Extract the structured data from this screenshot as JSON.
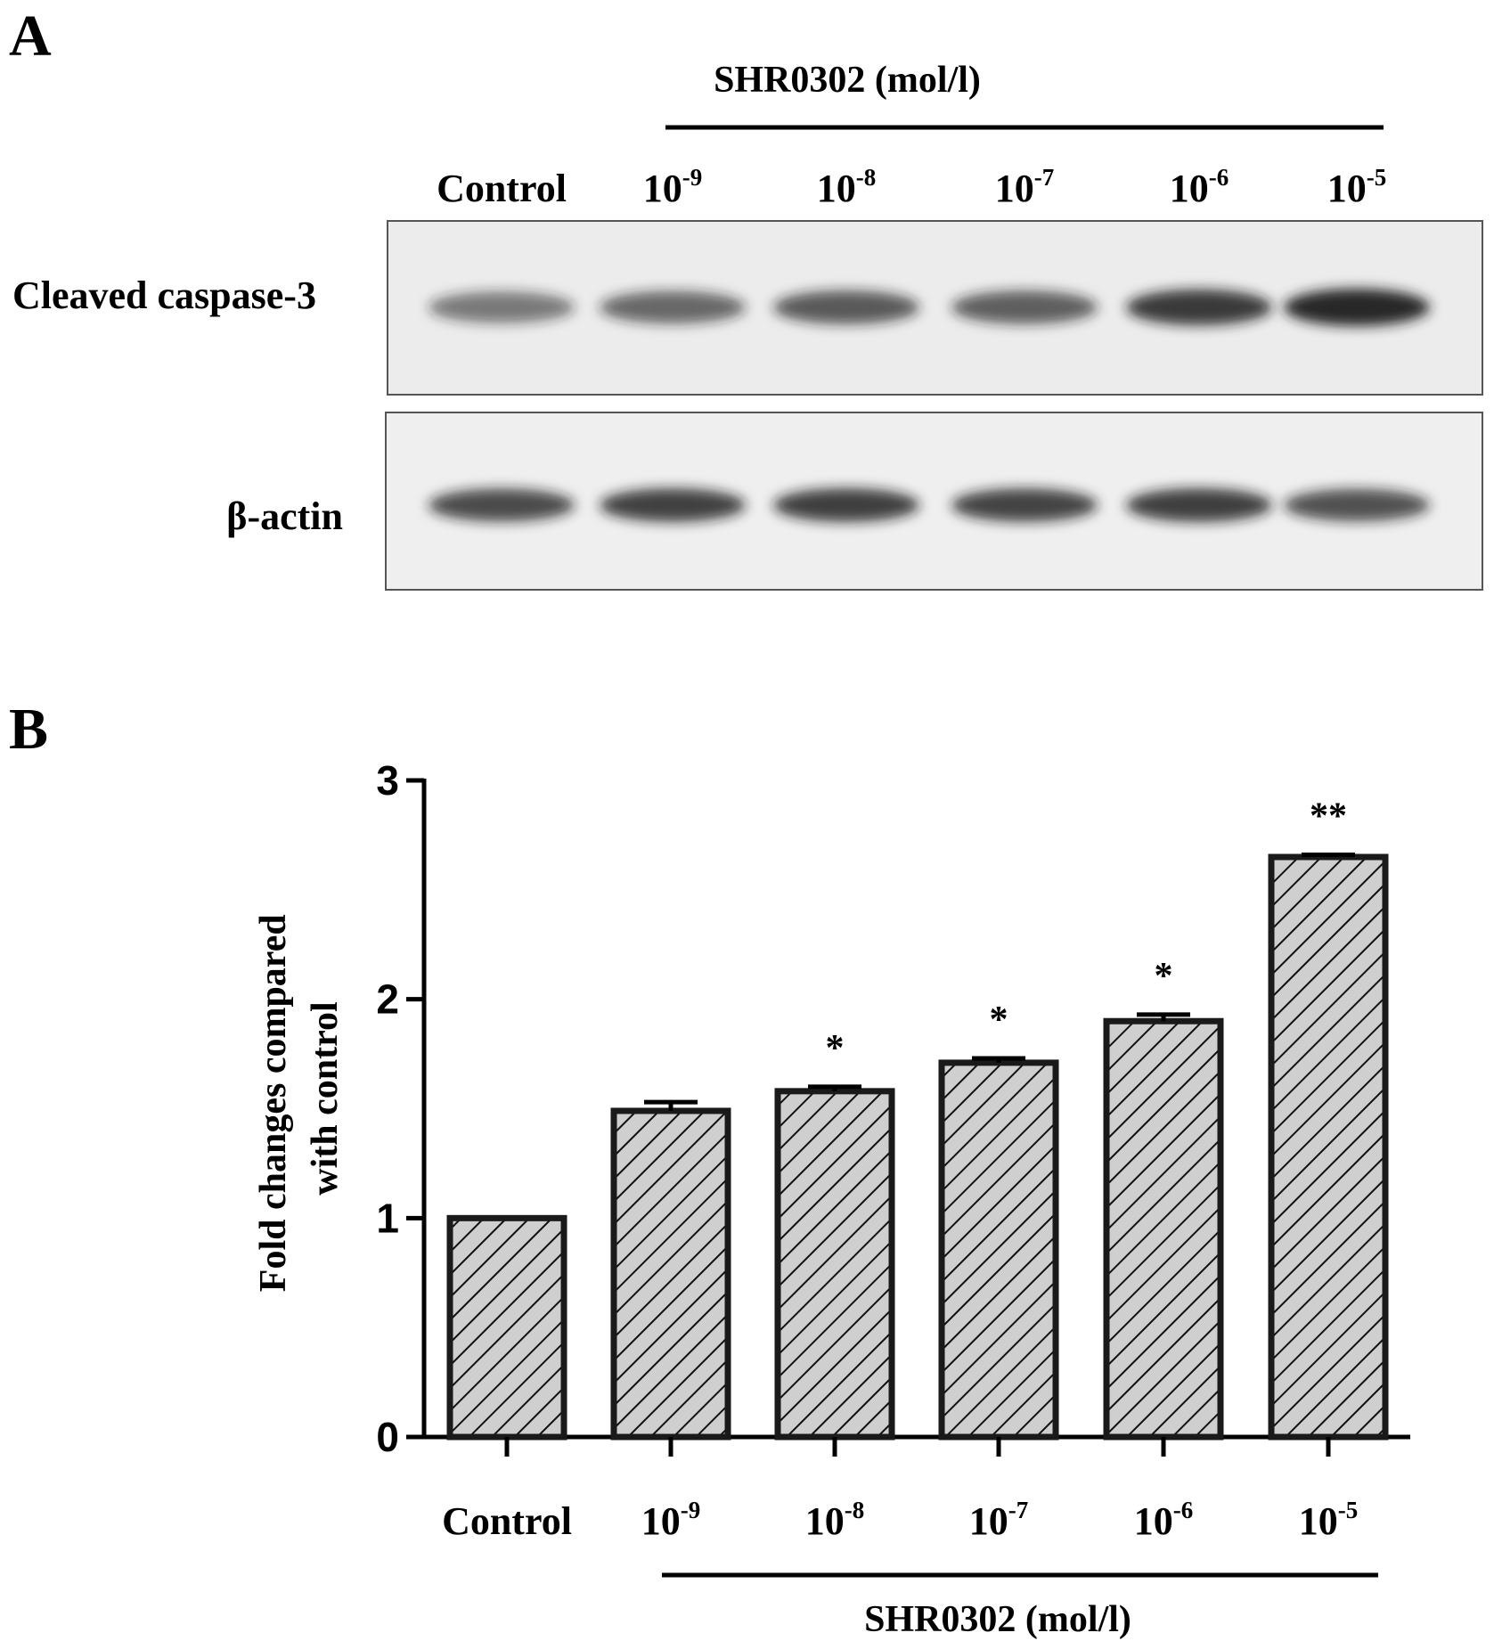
{
  "panel_a": {
    "letter": "A",
    "group_label": "SHR0302 (mol/l)",
    "lanes": [
      {
        "base": "Control",
        "exp": ""
      },
      {
        "base": "10",
        "exp": "-9"
      },
      {
        "base": "10",
        "exp": "-8"
      },
      {
        "base": "10",
        "exp": "-7"
      },
      {
        "base": "10",
        "exp": "-6"
      },
      {
        "base": "10",
        "exp": "-5"
      }
    ],
    "blot_rows": [
      {
        "label": "Cleaved caspase-3",
        "band_intensity": [
          0.45,
          0.55,
          0.65,
          0.62,
          0.85,
          1.0
        ]
      },
      {
        "label": "β-actin",
        "band_intensity": [
          0.75,
          0.8,
          0.82,
          0.78,
          0.82,
          0.7
        ]
      }
    ],
    "colors": {
      "band": "#1c1c1c",
      "membrane": "#ececec"
    }
  },
  "panel_b": {
    "letter": "B",
    "group_label": "SHR0302 (mol/l)",
    "ylabel_lines": [
      "Fold changes compared",
      "with control"
    ]
  },
  "chart_data": {
    "type": "bar",
    "categories": [
      {
        "base": "Control",
        "exp": ""
      },
      {
        "base": "10",
        "exp": "-9"
      },
      {
        "base": "10",
        "exp": "-8"
      },
      {
        "base": "10",
        "exp": "-7"
      },
      {
        "base": "10",
        "exp": "-6"
      },
      {
        "base": "10",
        "exp": "-5"
      }
    ],
    "values": [
      1.0,
      1.49,
      1.58,
      1.71,
      1.9,
      2.65
    ],
    "errors": [
      0.0,
      0.04,
      0.02,
      0.02,
      0.03,
      0.01
    ],
    "significance": [
      "",
      "",
      "*",
      "*",
      "*",
      "**"
    ],
    "ylim": [
      0,
      3
    ],
    "yticks": [
      0,
      1,
      2,
      3
    ],
    "grid": false,
    "bar_fill": "#cfcfcf",
    "hatch": "diagonal"
  }
}
